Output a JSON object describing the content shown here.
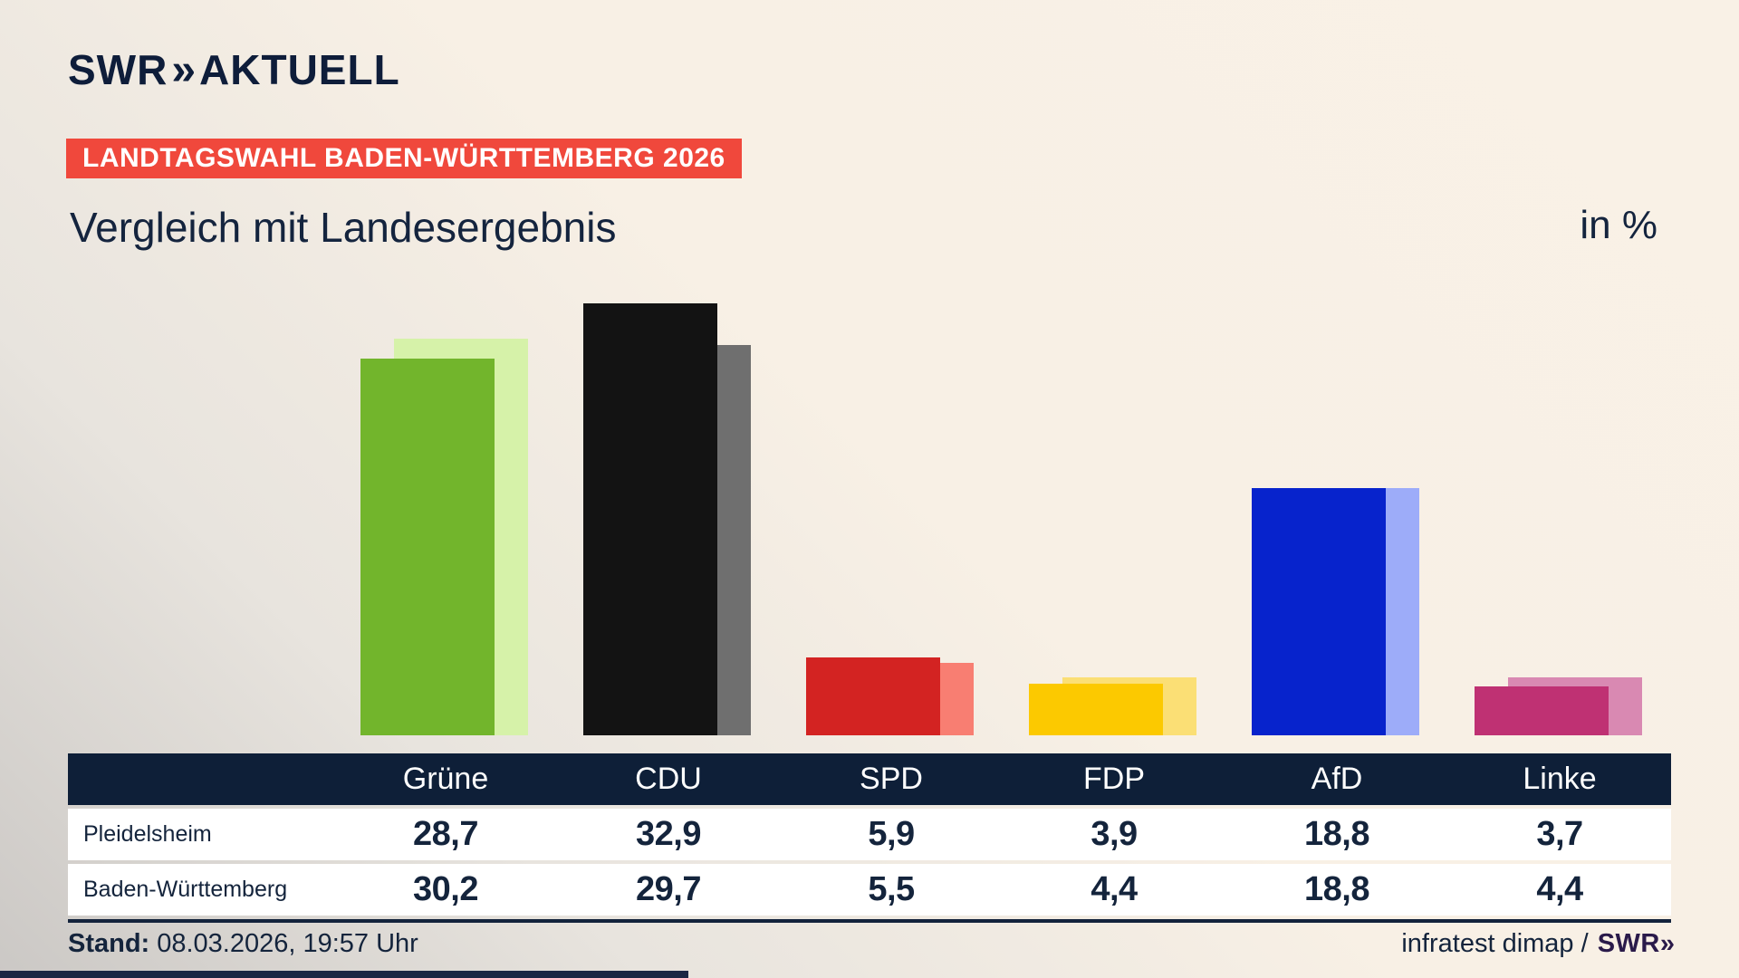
{
  "brand": {
    "swr": "SWR",
    "chevrons": "»",
    "suffix": "AKTUELL"
  },
  "badge": {
    "text": "LANDTAGSWAHL BADEN-WÜRTTEMBERG 2026",
    "bg": "#f0483c"
  },
  "title": "Vergleich mit Landesergebnis",
  "unit_label": "in %",
  "chart_data": {
    "type": "bar",
    "categories": [
      "Grüne",
      "CDU",
      "SPD",
      "FDP",
      "AfD",
      "Linke"
    ],
    "series": [
      {
        "name": "Pleidelsheim",
        "values": [
          28.7,
          32.9,
          5.9,
          3.9,
          18.8,
          3.7
        ]
      },
      {
        "name": "Baden-Württemberg",
        "values": [
          30.2,
          29.7,
          5.5,
          4.4,
          18.8,
          4.4
        ]
      }
    ],
    "colors_main": [
      "#72b52c",
      "#131313",
      "#d32322",
      "#fcc900",
      "#0723cc",
      "#bf3173"
    ],
    "colors_secondary": [
      "#d6f2a9",
      "#6f6f6f",
      "#f87e72",
      "#fbdf75",
      "#9dacf9",
      "#d989b2"
    ],
    "title": "Vergleich mit Landesergebnis",
    "xlabel": "",
    "ylabel": "in %",
    "ylim": [
      0,
      33
    ],
    "grid": false,
    "legend_position": "table-rows"
  },
  "table": {
    "header": [
      "",
      "Grüne",
      "CDU",
      "SPD",
      "FDP",
      "AfD",
      "Linke"
    ],
    "rows": [
      {
        "label": "Pleidelsheim",
        "values": [
          "28,7",
          "32,9",
          "5,9",
          "3,9",
          "18,8",
          "3,7"
        ]
      },
      {
        "label": "Baden-Württemberg",
        "values": [
          "30,2",
          "29,7",
          "5,5",
          "4,4",
          "18,8",
          "4,4"
        ]
      }
    ]
  },
  "footer": {
    "stand_label": "Stand:",
    "stand_value": "08.03.2026, 19:57 Uhr",
    "source_text": "infratest dimap /",
    "source_brand_swr": "SWR",
    "source_brand_chevrons": "»"
  }
}
